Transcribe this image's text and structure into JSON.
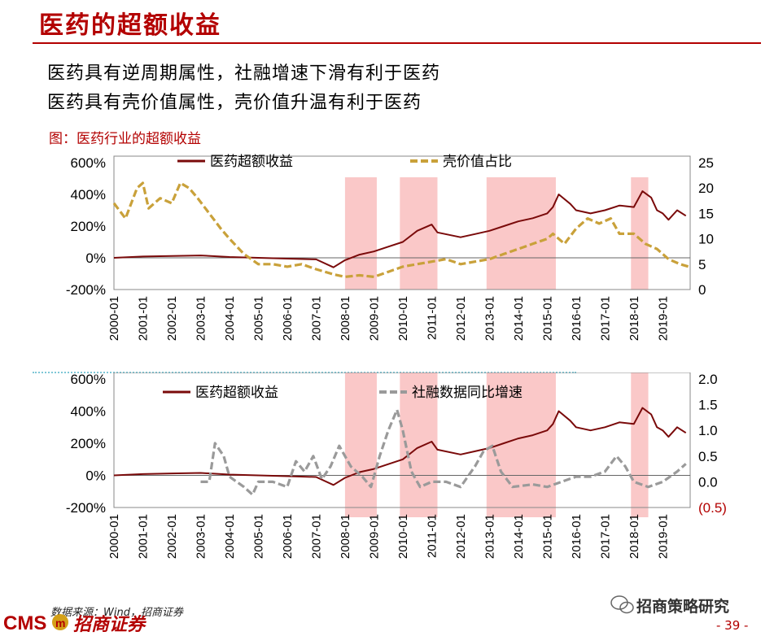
{
  "header": {
    "title": "医药的超额收益"
  },
  "bullets": [
    "医药具有逆周期属性，社融增速下滑有利于医药",
    "医药具有壳价值属性，壳价值升温有利于医药"
  ],
  "figure_caption": "图：医药行业的超额收益",
  "colors": {
    "excess": "#7a0a0a",
    "shell": "#c9a13a",
    "social": "#9a9a9a",
    "shade": "#f8b6b6",
    "brand": "#b30000"
  },
  "chart_data": [
    {
      "type": "line",
      "title": "",
      "x_ticks": [
        "2000-01",
        "2001-01",
        "2002-01",
        "2003-01",
        "2004-01",
        "2005-01",
        "2006-01",
        "2007-01",
        "2008-01",
        "2009-01",
        "2010-01",
        "2011-01",
        "2012-01",
        "2013-01",
        "2014-01",
        "2015-01",
        "2016-01",
        "2017-01",
        "2018-01",
        "2019-01"
      ],
      "y_left_ticks": [
        "600%",
        "400%",
        "200%",
        "0%",
        "-200%"
      ],
      "y_right_ticks": [
        "25",
        "20",
        "15",
        "10",
        "5",
        "0"
      ],
      "y_left_range": [
        -200,
        600
      ],
      "y_right_range": [
        0,
        25
      ],
      "shaded_periods": [
        [
          2008.0,
          2009.1
        ],
        [
          2009.9,
          2011.2
        ],
        [
          2012.9,
          2015.3
        ],
        [
          2017.9,
          2018.5
        ]
      ],
      "series": [
        {
          "name": "医药超额收益",
          "axis": "left",
          "style": "solid",
          "points": [
            [
              2000.0,
              0
            ],
            [
              2001.0,
              8
            ],
            [
              2002.0,
              12
            ],
            [
              2003.0,
              15
            ],
            [
              2004.0,
              5
            ],
            [
              2005.0,
              0
            ],
            [
              2006.0,
              -5
            ],
            [
              2007.0,
              -10
            ],
            [
              2007.6,
              -60
            ],
            [
              2008.0,
              -15
            ],
            [
              2008.5,
              20
            ],
            [
              2009.0,
              40
            ],
            [
              2009.5,
              70
            ],
            [
              2010.0,
              100
            ],
            [
              2010.5,
              170
            ],
            [
              2011.0,
              210
            ],
            [
              2011.2,
              160
            ],
            [
              2012.0,
              130
            ],
            [
              2012.5,
              150
            ],
            [
              2013.0,
              170
            ],
            [
              2013.5,
              200
            ],
            [
              2014.0,
              230
            ],
            [
              2014.5,
              250
            ],
            [
              2015.0,
              280
            ],
            [
              2015.2,
              320
            ],
            [
              2015.4,
              400
            ],
            [
              2015.8,
              340
            ],
            [
              2016.0,
              300
            ],
            [
              2016.5,
              280
            ],
            [
              2017.0,
              300
            ],
            [
              2017.5,
              330
            ],
            [
              2018.0,
              320
            ],
            [
              2018.3,
              420
            ],
            [
              2018.6,
              380
            ],
            [
              2018.8,
              300
            ],
            [
              2019.0,
              280
            ],
            [
              2019.2,
              240
            ],
            [
              2019.5,
              300
            ],
            [
              2019.8,
              265
            ]
          ]
        },
        {
          "name": "壳价值占比",
          "axis": "right",
          "style": "dashed",
          "points": [
            [
              2000.0,
              17
            ],
            [
              2000.4,
              14
            ],
            [
              2000.8,
              20
            ],
            [
              2001.0,
              21
            ],
            [
              2001.2,
              16
            ],
            [
              2001.6,
              18
            ],
            [
              2002.0,
              17
            ],
            [
              2002.3,
              21
            ],
            [
              2002.6,
              20
            ],
            [
              2002.9,
              18
            ],
            [
              2003.3,
              15
            ],
            [
              2003.7,
              12
            ],
            [
              2004.0,
              10
            ],
            [
              2004.5,
              7
            ],
            [
              2005.0,
              5
            ],
            [
              2005.5,
              5
            ],
            [
              2006.0,
              4.5
            ],
            [
              2006.5,
              5
            ],
            [
              2007.0,
              4
            ],
            [
              2007.6,
              3
            ],
            [
              2008.0,
              2.5
            ],
            [
              2008.5,
              2.8
            ],
            [
              2009.0,
              2.5
            ],
            [
              2009.5,
              3.5
            ],
            [
              2010.0,
              4.5
            ],
            [
              2010.5,
              5
            ],
            [
              2011.0,
              5.5
            ],
            [
              2011.5,
              6
            ],
            [
              2012.0,
              5
            ],
            [
              2012.5,
              5.5
            ],
            [
              2013.0,
              6
            ],
            [
              2013.5,
              7
            ],
            [
              2014.0,
              8
            ],
            [
              2014.5,
              9
            ],
            [
              2015.0,
              10
            ],
            [
              2015.2,
              11
            ],
            [
              2015.6,
              9
            ],
            [
              2016.0,
              12
            ],
            [
              2016.4,
              14
            ],
            [
              2016.8,
              13
            ],
            [
              2017.2,
              14
            ],
            [
              2017.5,
              11
            ],
            [
              2018.0,
              11
            ],
            [
              2018.4,
              9
            ],
            [
              2018.8,
              8
            ],
            [
              2019.2,
              6
            ],
            [
              2019.6,
              5
            ],
            [
              2019.9,
              4.5
            ]
          ]
        }
      ]
    },
    {
      "type": "line",
      "title": "",
      "x_ticks": [
        "2000-01",
        "2001-01",
        "2002-01",
        "2003-01",
        "2004-01",
        "2005-01",
        "2006-01",
        "2007-01",
        "2008-01",
        "2009-01",
        "2010-01",
        "2011-01",
        "2012-01",
        "2013-01",
        "2014-01",
        "2015-01",
        "2016-01",
        "2017-01",
        "2018-01",
        "2019-01"
      ],
      "y_left_ticks": [
        "600%",
        "400%",
        "200%",
        "0%",
        "-200%"
      ],
      "y_right_ticks": [
        "2.0",
        "1.5",
        "1.0",
        "0.5",
        "0.0",
        "(0.5)"
      ],
      "y_left_range": [
        -200,
        600
      ],
      "y_right_range": [
        -0.5,
        2.0
      ],
      "shaded_periods": [
        [
          2008.0,
          2009.1
        ],
        [
          2009.9,
          2011.2
        ],
        [
          2012.9,
          2015.3
        ],
        [
          2017.9,
          2018.5
        ]
      ],
      "series": [
        {
          "name": "医药超额收益",
          "axis": "left",
          "style": "solid",
          "points": [
            [
              2000.0,
              0
            ],
            [
              2001.0,
              8
            ],
            [
              2002.0,
              12
            ],
            [
              2003.0,
              15
            ],
            [
              2004.0,
              5
            ],
            [
              2005.0,
              0
            ],
            [
              2006.0,
              -5
            ],
            [
              2007.0,
              -10
            ],
            [
              2007.6,
              -60
            ],
            [
              2008.0,
              -15
            ],
            [
              2008.5,
              20
            ],
            [
              2009.0,
              40
            ],
            [
              2009.5,
              70
            ],
            [
              2010.0,
              100
            ],
            [
              2010.5,
              170
            ],
            [
              2011.0,
              210
            ],
            [
              2011.2,
              160
            ],
            [
              2012.0,
              130
            ],
            [
              2012.5,
              150
            ],
            [
              2013.0,
              170
            ],
            [
              2013.5,
              200
            ],
            [
              2014.0,
              230
            ],
            [
              2014.5,
              250
            ],
            [
              2015.0,
              280
            ],
            [
              2015.2,
              320
            ],
            [
              2015.4,
              400
            ],
            [
              2015.8,
              340
            ],
            [
              2016.0,
              300
            ],
            [
              2016.5,
              280
            ],
            [
              2017.0,
              300
            ],
            [
              2017.5,
              330
            ],
            [
              2018.0,
              320
            ],
            [
              2018.3,
              420
            ],
            [
              2018.6,
              380
            ],
            [
              2018.8,
              300
            ],
            [
              2019.0,
              280
            ],
            [
              2019.2,
              240
            ],
            [
              2019.5,
              300
            ],
            [
              2019.8,
              265
            ]
          ]
        },
        {
          "name": "社融数据同比增速",
          "axis": "right",
          "style": "dashed",
          "points": [
            [
              2003.0,
              0.0
            ],
            [
              2003.3,
              0.0
            ],
            [
              2003.5,
              0.75
            ],
            [
              2003.8,
              0.5
            ],
            [
              2004.0,
              0.1
            ],
            [
              2004.5,
              -0.1
            ],
            [
              2004.8,
              -0.25
            ],
            [
              2005.0,
              0.0
            ],
            [
              2005.5,
              0.0
            ],
            [
              2006.0,
              -0.1
            ],
            [
              2006.3,
              0.4
            ],
            [
              2006.6,
              0.2
            ],
            [
              2006.9,
              0.5
            ],
            [
              2007.2,
              0.05
            ],
            [
              2007.5,
              0.3
            ],
            [
              2007.8,
              0.7
            ],
            [
              2008.2,
              0.3
            ],
            [
              2008.6,
              0.1
            ],
            [
              2008.9,
              -0.1
            ],
            [
              2009.2,
              0.5
            ],
            [
              2009.5,
              1.0
            ],
            [
              2009.8,
              1.4
            ],
            [
              2010.0,
              1.0
            ],
            [
              2010.3,
              0.2
            ],
            [
              2010.6,
              -0.1
            ],
            [
              2011.0,
              0.0
            ],
            [
              2011.5,
              0.0
            ],
            [
              2012.0,
              -0.1
            ],
            [
              2012.5,
              0.3
            ],
            [
              2012.8,
              0.6
            ],
            [
              2013.1,
              0.7
            ],
            [
              2013.4,
              0.2
            ],
            [
              2013.8,
              -0.1
            ],
            [
              2014.5,
              -0.05
            ],
            [
              2015.0,
              -0.1
            ],
            [
              2015.5,
              0.0
            ],
            [
              2016.0,
              0.1
            ],
            [
              2016.5,
              0.1
            ],
            [
              2017.0,
              0.2
            ],
            [
              2017.4,
              0.5
            ],
            [
              2017.7,
              0.3
            ],
            [
              2018.0,
              0.0
            ],
            [
              2018.5,
              -0.1
            ],
            [
              2019.0,
              0.0
            ],
            [
              2019.5,
              0.2
            ],
            [
              2019.8,
              0.35
            ]
          ]
        }
      ]
    }
  ],
  "legend": {
    "top": [
      "医药超额收益",
      "壳价值占比"
    ],
    "bottom": [
      "医药超额收益",
      "社融数据同比增速"
    ]
  },
  "footer": {
    "source": "数据来源：Wind，招商证券",
    "brand": "CMS",
    "brand_cn": "招商证券",
    "watermark": "招商策略研究",
    "page": "- 39 -"
  }
}
